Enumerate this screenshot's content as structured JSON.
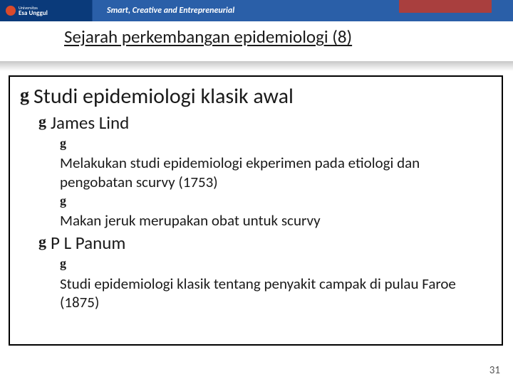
{
  "header": {
    "university_top": "Universitas",
    "university_name": "Esa Unggul",
    "tagline": "Smart, Creative and Entrepreneurial",
    "logo_color": "#d94a2b",
    "bar_color_left": "#0a3a7a",
    "bar_color_right": "#2a5fa8",
    "accent_color": "#c0392b"
  },
  "title": "Sejarah perkembangan epidemiologi (8)",
  "content": {
    "lvl1_1": "Studi epidemiologi klasik awal",
    "lvl2_1": "James Lind",
    "lvl3_1": "Melakukan studi epidemiologi ekperimen pada etiologi dan pengobatan scurvy (1753)",
    "lvl3_2": "Makan jeruk merupakan obat untuk scurvy",
    "lvl2_2": "P L Panum",
    "lvl3_3": "Studi epidemiologi klasik tentang penyakit campak di pulau Faroe (1875)"
  },
  "page_number": "31",
  "style": {
    "title_fontsize": 25,
    "lvl1_fontsize": 30,
    "lvl2_fontsize": 25,
    "lvl3_fontsize": 21,
    "text_color": "#1a1a1a",
    "box_border": "#000000",
    "background": "#ffffff",
    "bullet_glyph": "g"
  }
}
